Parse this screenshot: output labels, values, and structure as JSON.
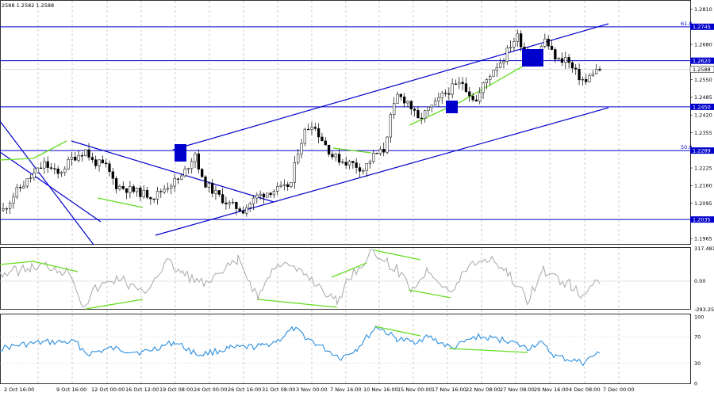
{
  "chart_data": {
    "type": "candlestick",
    "symbol_ohlc_text": "2588 1.2582 1.2588",
    "price_axis_ticks": [
      "1.2810",
      "1.2680",
      "1.2550",
      "1.2485",
      "1.2420",
      "1.2355",
      "1.2225",
      "1.2160",
      "1.2095",
      "1.1965"
    ],
    "price_range": [
      1.1945,
      1.2832
    ],
    "horizontal_levels": [
      {
        "price": 1.2745,
        "label": "1.2745",
        "tag": "61.8"
      },
      {
        "price": 1.262,
        "label": "1.2620",
        "tag": ""
      },
      {
        "price": 1.245,
        "label": "1.2450",
        "tag": ""
      },
      {
        "price": 1.2289,
        "label": "1.2289",
        "tag": "50.0"
      },
      {
        "price": 1.2035,
        "label": "1.2035",
        "tag": ""
      }
    ],
    "current_price": {
      "price": 1.2588,
      "label": "1.2588"
    },
    "x_labels": [
      "2 Oct 16:00",
      "9 Oct 16:00",
      "12 Oct 00:00",
      "16 Oct 12:00",
      "19 Oct 08:00",
      "24 Oct 00:00",
      "26 Oct 16:00",
      "31 Oct 08:00",
      "3 Nov 00:00",
      "7 Nov 16:00",
      "10 Nov 16:00",
      "15 Nov 00:00",
      "17 Nov 16:00",
      "22 Nov 08:00",
      "27 Nov 08:00",
      "29 Nov 16:00",
      "4 Dec 08:00",
      "7 Dec 00:00"
    ],
    "close_path": [
      [
        0,
        1.207
      ],
      [
        4,
        1.214
      ],
      [
        8,
        1.219
      ],
      [
        12,
        1.224
      ],
      [
        16,
        1.22
      ],
      [
        20,
        1.226
      ],
      [
        24,
        1.229
      ],
      [
        26,
        1.225
      ],
      [
        30,
        1.223
      ],
      [
        33,
        1.216
      ],
      [
        38,
        1.214
      ],
      [
        44,
        1.212
      ],
      [
        48,
        1.216
      ],
      [
        52,
        1.219
      ],
      [
        56,
        1.228
      ],
      [
        58,
        1.218
      ],
      [
        62,
        1.213
      ],
      [
        66,
        1.209
      ],
      [
        70,
        1.207
      ],
      [
        74,
        1.212
      ],
      [
        78,
        1.214
      ],
      [
        82,
        1.215
      ],
      [
        84,
        1.217
      ],
      [
        86,
        1.229
      ],
      [
        88,
        1.236
      ],
      [
        90,
        1.239
      ],
      [
        93,
        1.233
      ],
      [
        96,
        1.227
      ],
      [
        99,
        1.225
      ],
      [
        102,
        1.224
      ],
      [
        105,
        1.222
      ],
      [
        108,
        1.227
      ],
      [
        111,
        1.229
      ],
      [
        113,
        1.241
      ],
      [
        115,
        1.249
      ],
      [
        118,
        1.247
      ],
      [
        121,
        1.24
      ],
      [
        124,
        1.244
      ],
      [
        126,
        1.246
      ],
      [
        128,
        1.249
      ],
      [
        131,
        1.252
      ],
      [
        134,
        1.254
      ],
      [
        136,
        1.25
      ],
      [
        138,
        1.247
      ],
      [
        140,
        1.253
      ],
      [
        143,
        1.259
      ],
      [
        146,
        1.263
      ],
      [
        148,
        1.268
      ],
      [
        150,
        1.271
      ],
      [
        152,
        1.266
      ],
      [
        154,
        1.262
      ],
      [
        156,
        1.264
      ],
      [
        158,
        1.27
      ],
      [
        160,
        1.265
      ],
      [
        162,
        1.262
      ],
      [
        164,
        1.263
      ],
      [
        166,
        1.259
      ],
      [
        168,
        1.256
      ],
      [
        170,
        1.254
      ],
      [
        172,
        1.258
      ],
      [
        174,
        1.2588
      ]
    ],
    "indicator_1": {
      "label_top": "317.4817",
      "label_mid": "0.00",
      "label_bottom": "-293.256"
    },
    "indicator_2": {
      "labels": [
        "100",
        "70",
        "30",
        "0"
      ]
    }
  }
}
